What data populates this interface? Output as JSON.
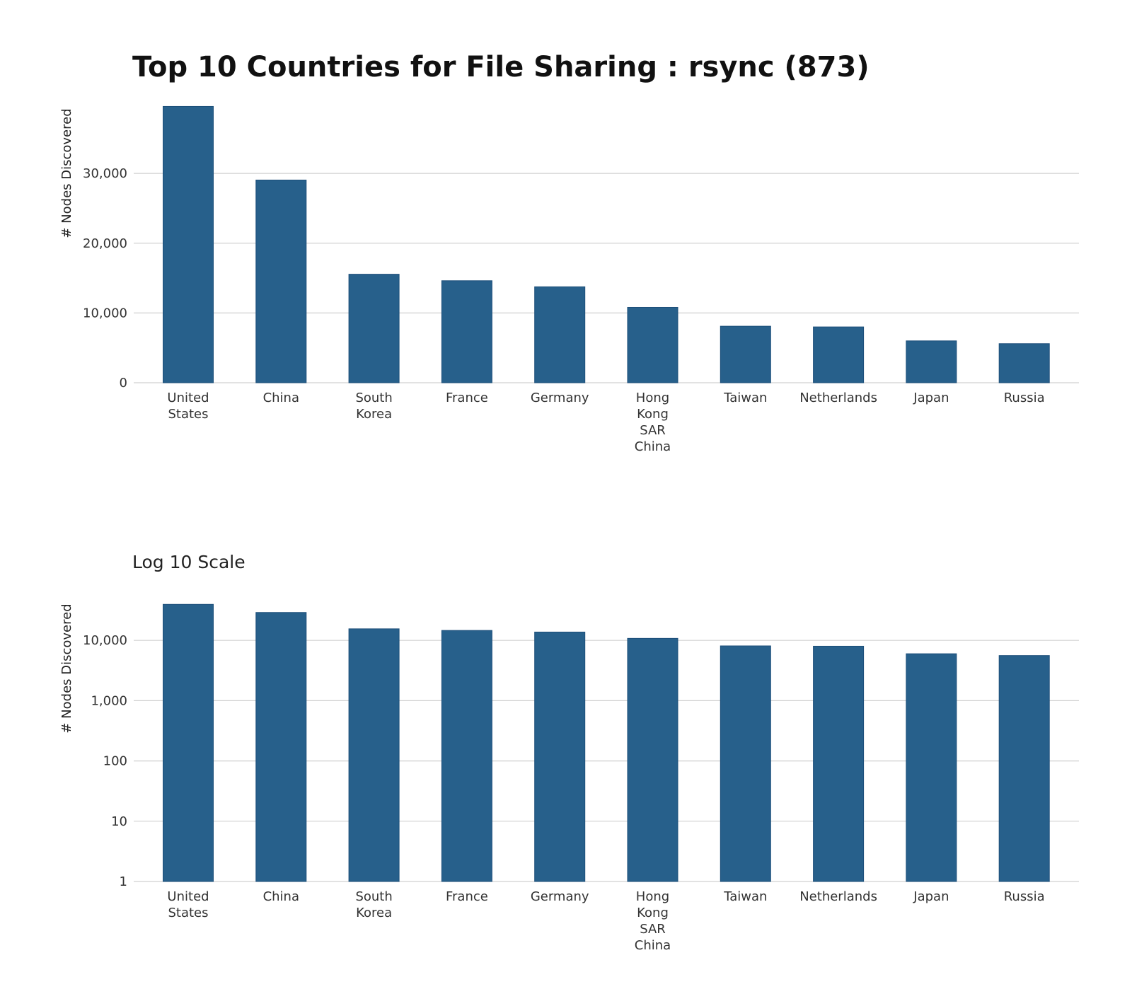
{
  "chart_data": [
    {
      "type": "bar",
      "title": "Top 10 Countries for File Sharing : rsync (873)",
      "ylabel": "# Nodes Discovered",
      "xlabel": "",
      "categories": [
        "United States",
        "China",
        "South Korea",
        "France",
        "Germany",
        "Hong Kong SAR China",
        "Taiwan",
        "Netherlands",
        "Japan",
        "Russia"
      ],
      "values": [
        39600,
        29050,
        15550,
        14620,
        13750,
        10800,
        8100,
        8000,
        6000,
        5600
      ],
      "yscale": "linear",
      "ylim": [
        0,
        40000
      ],
      "yticks": [
        0,
        10000,
        20000,
        30000
      ],
      "ytick_labels": [
        "0",
        "10,000",
        "20,000",
        "30,000"
      ],
      "grid": "horizontal",
      "bar_color": "#27608b"
    },
    {
      "type": "bar",
      "title": "Log 10 Scale",
      "ylabel": "# Nodes Discovered",
      "xlabel": "",
      "categories": [
        "United States",
        "China",
        "South Korea",
        "France",
        "Germany",
        "Hong Kong SAR China",
        "Taiwan",
        "Netherlands",
        "Japan",
        "Russia"
      ],
      "values": [
        39600,
        29050,
        15550,
        14620,
        13750,
        10800,
        8100,
        8000,
        6000,
        5600
      ],
      "yscale": "log10",
      "ylim": [
        1,
        40000
      ],
      "yticks": [
        1,
        10,
        100,
        1000,
        10000
      ],
      "ytick_labels": [
        "1",
        "10",
        "100",
        "1,000",
        "10,000"
      ],
      "grid": "horizontal",
      "bar_color": "#27608b"
    }
  ],
  "category_label_lines": [
    [
      "United",
      "States"
    ],
    [
      "China"
    ],
    [
      "South",
      "Korea"
    ],
    [
      "France"
    ],
    [
      "Germany"
    ],
    [
      "Hong",
      "Kong",
      "SAR",
      "China"
    ],
    [
      "Taiwan"
    ],
    [
      "Netherlands"
    ],
    [
      "Japan"
    ],
    [
      "Russia"
    ]
  ]
}
